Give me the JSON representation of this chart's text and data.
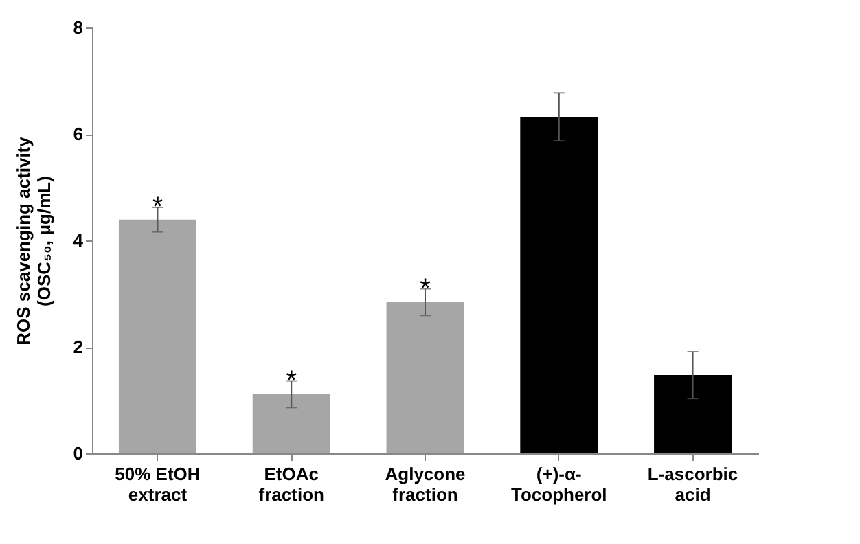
{
  "chart_data": {
    "type": "bar",
    "ylabel": "ROS scavenging activity\n(OSC₅₀, μg/mL)",
    "categories": [
      "50% EtOH\nextract",
      "EtOAc\nfraction",
      "Aglycone\nfraction",
      "(+)-α-\nTocopherol",
      "L-ascorbic\nacid"
    ],
    "values": [
      4.39,
      1.11,
      2.84,
      6.32,
      1.47
    ],
    "colors": [
      "#a6a6a6",
      "#a6a6a6",
      "#a6a6a6",
      "#000000",
      "#000000"
    ],
    "errors": [
      0.23,
      0.25,
      0.25,
      0.45,
      0.44
    ],
    "ylim": [
      0,
      8
    ],
    "yticks": [
      0,
      2,
      4,
      6,
      8
    ],
    "grid": false,
    "legend": false,
    "annotations": [
      {
        "text": "*",
        "x": "50% EtOH\nextract",
        "y": 4.62
      },
      {
        "text": "*",
        "x": "EtOAc\nfraction",
        "y": 1.36
      },
      {
        "text": "*",
        "x": "Aglycone\nfraction",
        "y": 3.09
      }
    ]
  }
}
